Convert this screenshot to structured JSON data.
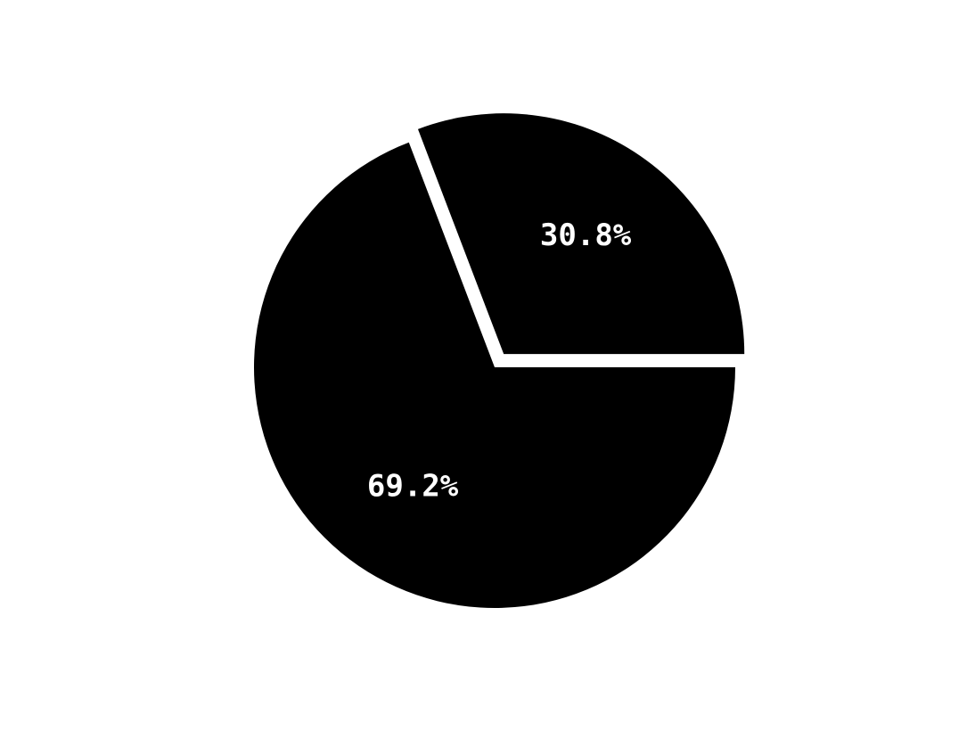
{
  "chart_data": {
    "type": "pie",
    "title": "",
    "slices": [
      {
        "value": 69.2,
        "label": "69.2%",
        "color": "#000000",
        "exploded": false
      },
      {
        "value": 30.8,
        "label": "30.8%",
        "color": "#000000",
        "exploded": true
      }
    ],
    "start_angle_deg": 0,
    "direction": "clockwise",
    "background": "#ffffff"
  }
}
